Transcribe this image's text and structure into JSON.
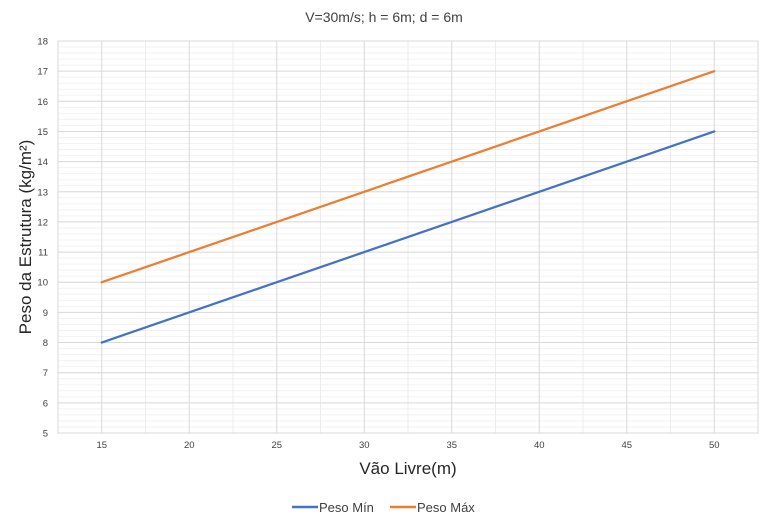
{
  "chart_data": {
    "type": "line",
    "title": "V=30m/s; h = 6m; d = 6m",
    "xlabel": "Vão Livre(m)",
    "ylabel": "Peso da Estrutura (kg/m²)",
    "x": [
      15,
      50
    ],
    "xticks": [
      15,
      20,
      25,
      30,
      35,
      40,
      45,
      50
    ],
    "xlim": [
      12.5,
      52.5
    ],
    "ylim": [
      5,
      18
    ],
    "yticks": [
      5,
      6,
      7,
      8,
      9,
      10,
      11,
      12,
      13,
      14,
      15,
      16,
      17,
      18
    ],
    "grid": true,
    "minor_grid": true,
    "legend_position": "bottom",
    "series": [
      {
        "name": "Peso Mín",
        "color": "#4472C4",
        "values": [
          8,
          15
        ]
      },
      {
        "name": "Peso Máx",
        "color": "#ED7D31",
        "values": [
          10,
          17
        ]
      }
    ]
  }
}
